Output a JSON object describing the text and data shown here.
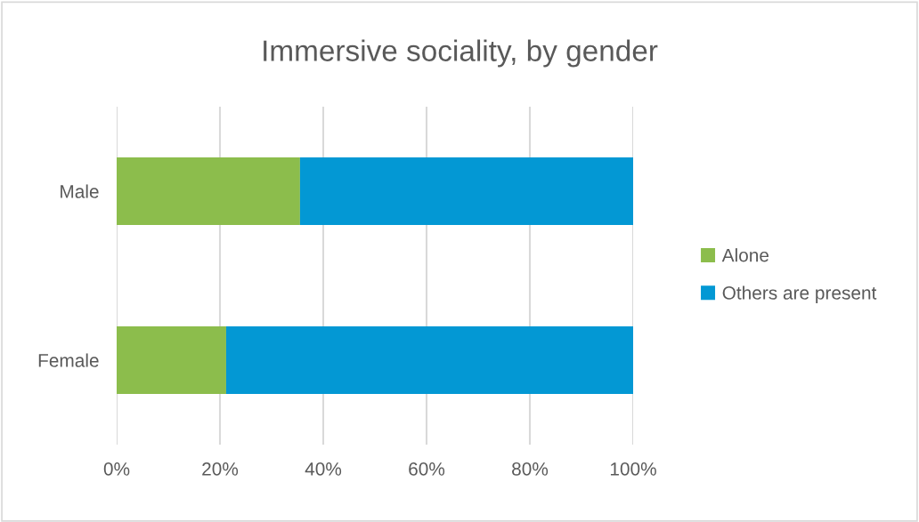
{
  "chart_data": {
    "type": "bar",
    "orientation": "horizontal",
    "stacked": true,
    "title": "Immersive sociality, by gender",
    "categories": [
      "Male",
      "Female"
    ],
    "series": [
      {
        "name": "Alone",
        "color": "#8cbd4c",
        "values": [
          35.5,
          21.2
        ]
      },
      {
        "name": "Others are present",
        "color": "#0398d4",
        "values": [
          64.5,
          78.8
        ]
      }
    ],
    "xlim": [
      0,
      100
    ],
    "xticks": [
      {
        "value": 0,
        "label": "0%"
      },
      {
        "value": 20,
        "label": "20%"
      },
      {
        "value": 40,
        "label": "40%"
      },
      {
        "value": 60,
        "label": "60%"
      },
      {
        "value": 80,
        "label": "80%"
      },
      {
        "value": 100,
        "label": "100%"
      }
    ],
    "grid": "x",
    "legend": "right"
  }
}
